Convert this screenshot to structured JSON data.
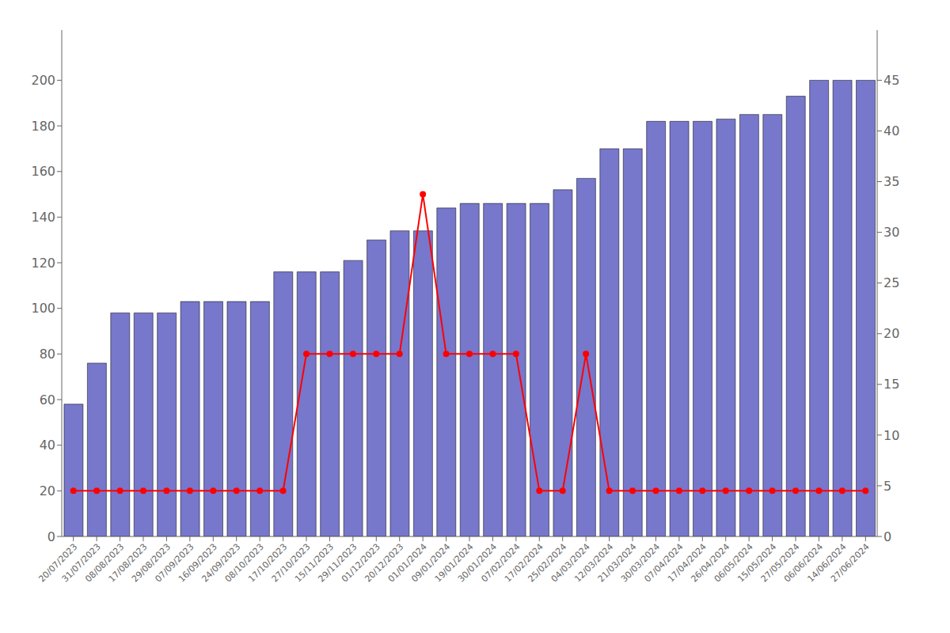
{
  "chart_data": {
    "type": "bar",
    "categories": [
      "20/07/2023",
      "31/07/2023",
      "08/08/2023",
      "17/08/2023",
      "29/08/2023",
      "07/09/2023",
      "16/09/2023",
      "24/09/2023",
      "08/10/2023",
      "17/10/2023",
      "27/10/2023",
      "15/11/2023",
      "29/11/2023",
      "01/12/2023",
      "20/12/2023",
      "01/01/2024",
      "09/01/2024",
      "19/01/2024",
      "30/01/2024",
      "07/02/2024",
      "17/02/2024",
      "25/02/2024",
      "04/03/2024",
      "12/03/2024",
      "21/03/2024",
      "30/03/2024",
      "07/04/2024",
      "17/04/2024",
      "26/04/2024",
      "06/05/2024",
      "15/05/2024",
      "27/05/2024",
      "06/06/2024",
      "14/06/2024",
      "27/06/2024"
    ],
    "series": [
      {
        "type": "bar",
        "color": "#7777CC",
        "values": [
          58,
          76,
          98,
          98,
          98,
          103,
          103,
          103,
          103,
          116,
          116,
          116,
          121,
          130,
          134,
          134,
          144,
          146,
          146,
          146,
          146,
          152,
          157,
          170,
          170,
          182,
          182,
          182,
          183,
          185,
          185,
          193,
          200,
          200,
          200
        ]
      },
      {
        "type": "line",
        "color": "#FF0000",
        "marker": "circle",
        "values": [
          20,
          20,
          20,
          20,
          20,
          20,
          20,
          20,
          20,
          20,
          80,
          80,
          80,
          80,
          80,
          150,
          80,
          80,
          80,
          80,
          20,
          20,
          80,
          20,
          20,
          20,
          20,
          20,
          20,
          20,
          20,
          20,
          20,
          20,
          20
        ]
      }
    ],
    "ylim": [
      0,
      222
    ],
    "yticks": [
      0,
      20,
      40,
      60,
      80,
      100,
      120,
      140,
      160,
      180,
      200
    ],
    "y2lim": [
      0,
      49.95
    ],
    "y2ticks": [
      0,
      5,
      10,
      15,
      20,
      25,
      30,
      35,
      40,
      45
    ],
    "grid": false
  }
}
